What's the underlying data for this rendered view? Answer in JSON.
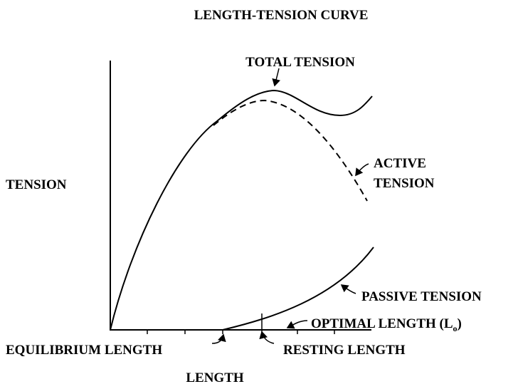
{
  "title": "LENGTH-TENSION CURVE",
  "y_axis_label": "TENSION",
  "x_axis_label": "LENGTH",
  "curves": {
    "total": {
      "label": "TOTAL TENSION"
    },
    "active": {
      "label_lines": [
        "ACTIVE",
        "TENSION"
      ]
    },
    "passive": {
      "label": "PASSIVE TENSION"
    }
  },
  "markers": {
    "optimal_length": {
      "text": "OPTIMAL LENGTH (L",
      "subscript": "o",
      "suffix": ")"
    },
    "equilibrium_length": {
      "label": "EQUILIBRIUM LENGTH"
    },
    "resting_length": {
      "label": "RESTING LENGTH"
    }
  }
}
